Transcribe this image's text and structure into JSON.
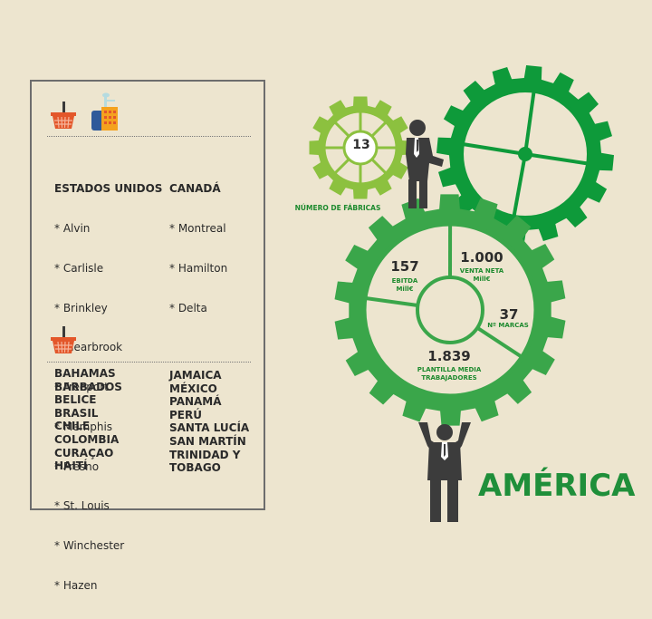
{
  "left_panel": {
    "icons": [
      "shopping-basket-icon",
      "factory-icon"
    ],
    "sections": [
      {
        "columns": [
          {
            "heading": "ESTADOS UNIDOS",
            "items": [
              "* Alvin",
              "* Carlisle",
              "* Brinkley",
              "* Clearbrook",
              "* Freeport",
              "* Memphis",
              "* Fresno",
              "* St. Louis",
              "* Winchester",
              "* Hazen"
            ]
          },
          {
            "heading": "CANADÁ",
            "items": [
              "* Montreal",
              "* Hamilton",
              "* Delta"
            ]
          }
        ]
      },
      {
        "columns": [
          {
            "items": [
              "BAHAMAS",
              "BARBADOS",
              "BELICE",
              "BRASIL",
              "CHILE",
              "COLOMBIA",
              "CURAÇAO",
              "HAITÍ"
            ]
          },
          {
            "items": [
              "JAMAICA",
              "MÉXICO",
              "PANAMÁ",
              "PERÚ",
              "SANTA LUCÍA",
              "SAN MARTÍN",
              "TRINIDAD Y",
              "TOBAGO"
            ]
          }
        ]
      }
    ]
  },
  "infographic": {
    "region_title": "AMÉRICA",
    "factories": {
      "value": "13",
      "label": "NÚMERO DE FÁBRICAS"
    },
    "metrics": [
      {
        "value": "157",
        "label_line1": "EBITDA",
        "label_line2": "Mill€"
      },
      {
        "value": "1.000",
        "label_line1": "VENTA NETA",
        "label_line2": "Mill€"
      },
      {
        "value": "37",
        "label_line1": "Nº MARCAS",
        "label_line2": ""
      },
      {
        "value": "1.839",
        "label_line1": "PLANTILLA MEDIA",
        "label_line2": "TRABAJADORES"
      }
    ],
    "colors": {
      "light_green": "#8cc13f",
      "mid_green": "#3aa64a",
      "dark_green": "#0e9a3a",
      "figure": "#3c3c3c",
      "background": "#ede5cf"
    }
  }
}
